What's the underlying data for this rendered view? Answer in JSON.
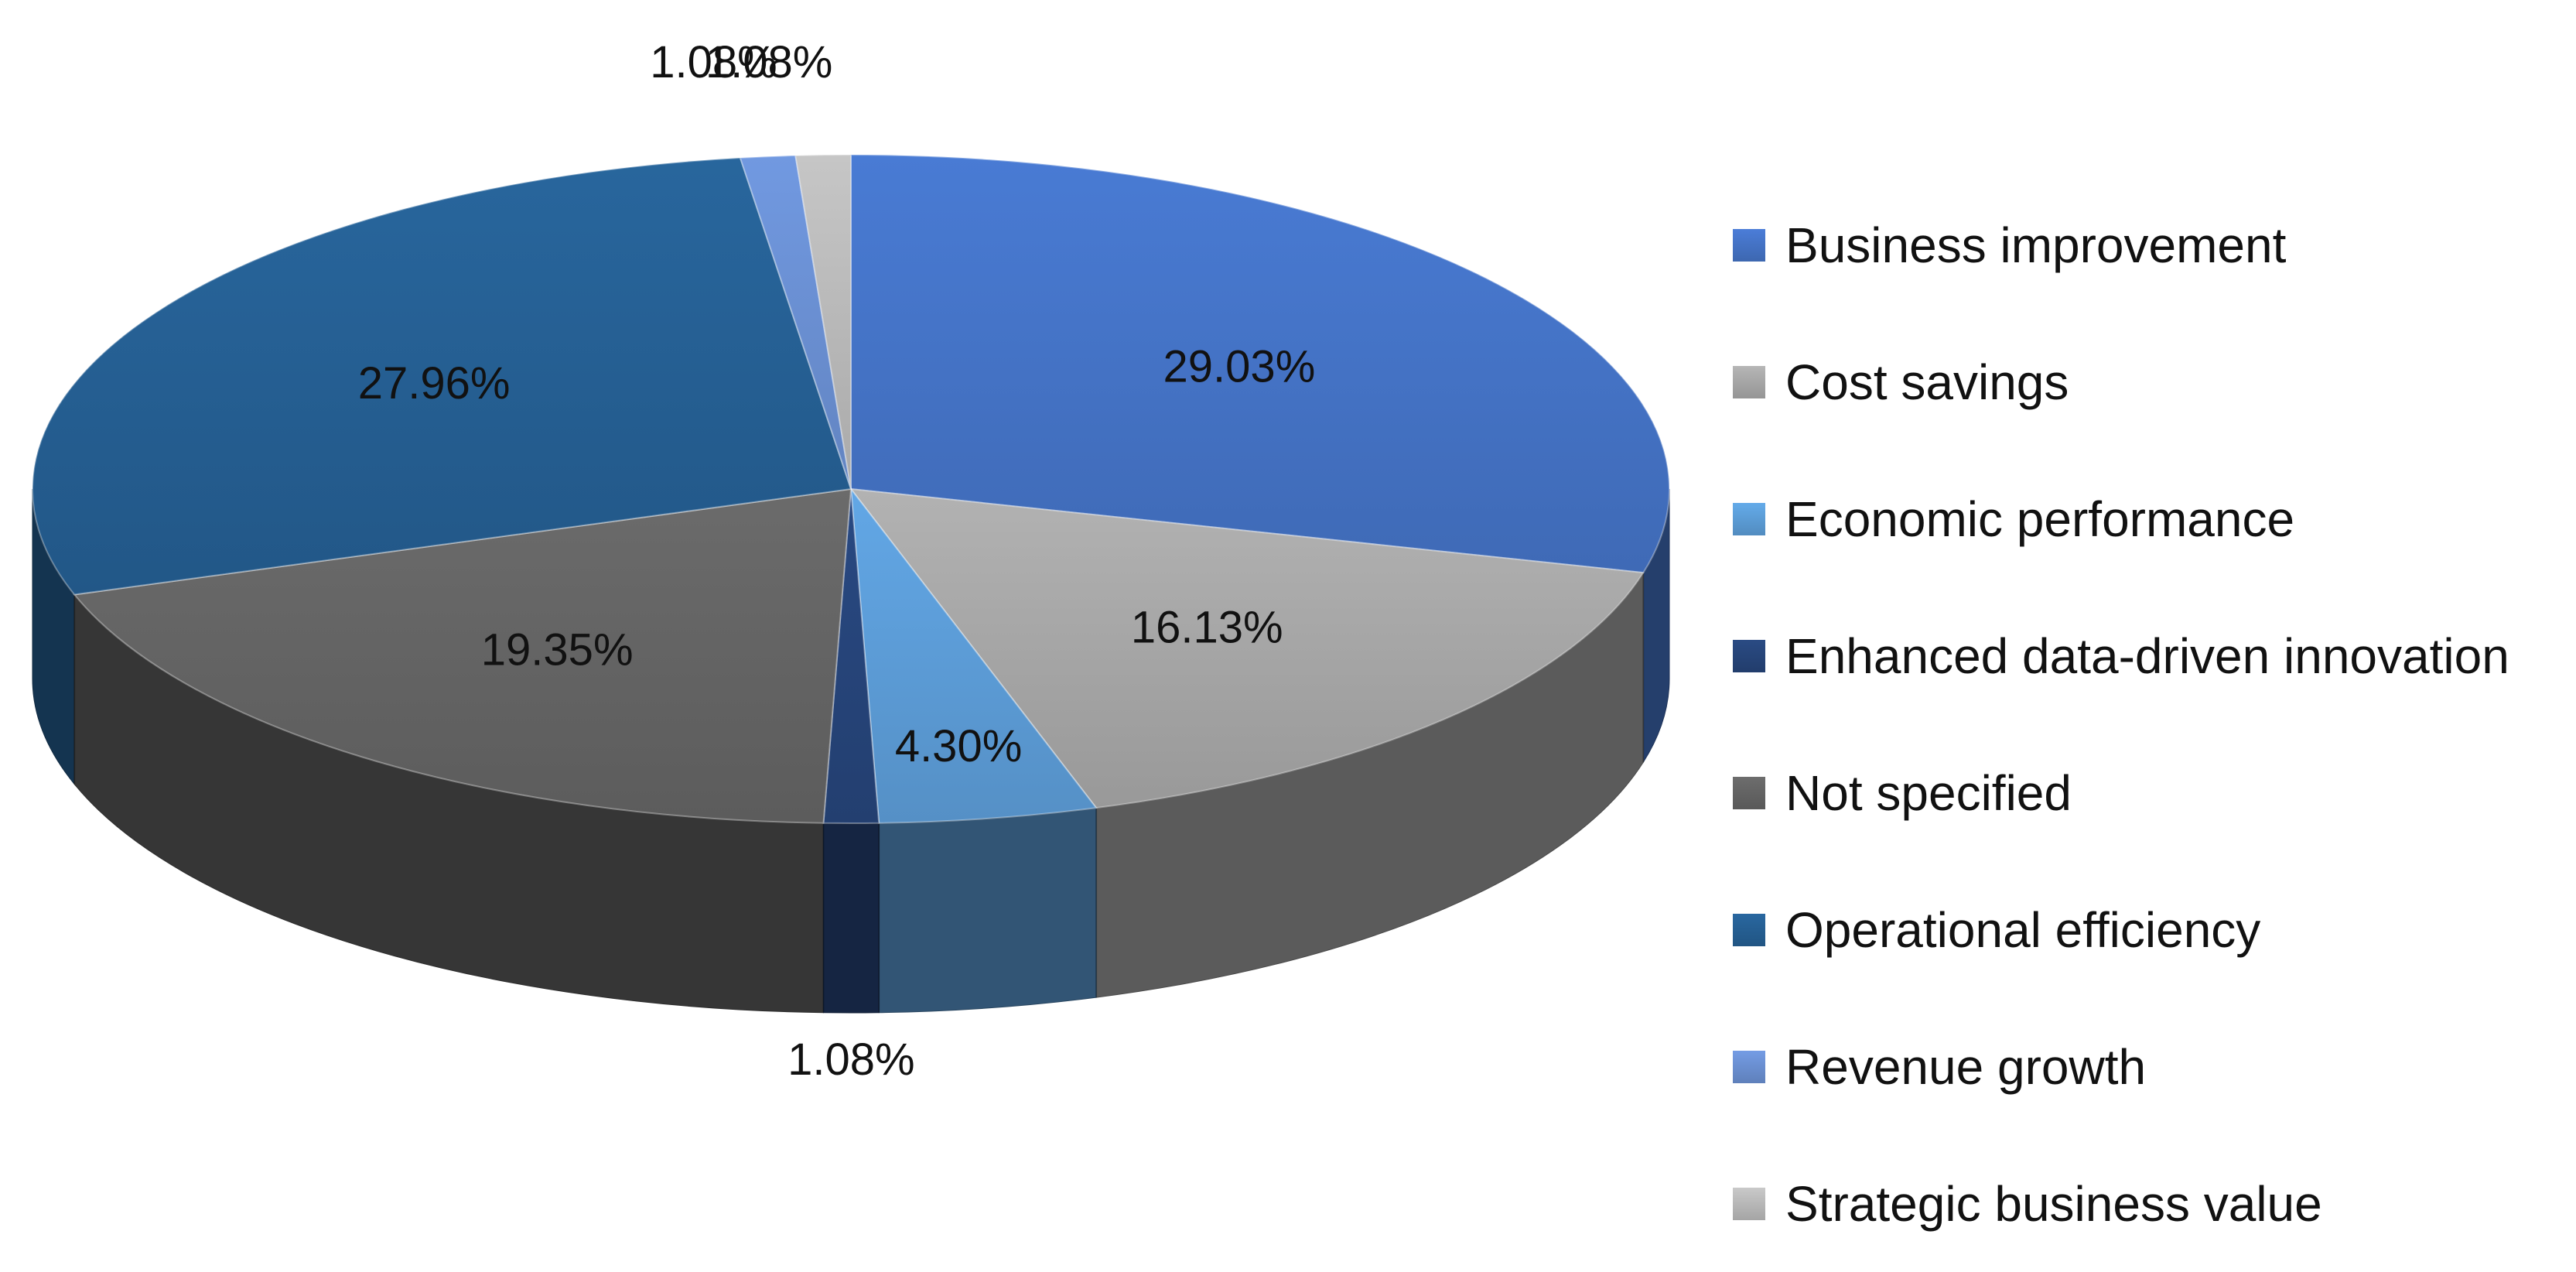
{
  "chart_data": {
    "type": "pie",
    "variant": "3d",
    "title": "",
    "legend_position": "right",
    "categories": [
      "Business improvement",
      "Cost savings",
      "Economic performance",
      "Enhanced data-driven innovation",
      "Not specified",
      "Operational efficiency",
      "Revenue growth",
      "Strategic business value"
    ],
    "values": [
      29.03,
      16.13,
      4.3,
      1.08,
      19.35,
      27.96,
      1.08,
      1.08
    ],
    "labels": [
      "29.03%",
      "16.13%",
      "4.30%",
      "1.08%",
      "19.35%",
      "27.96%",
      "1.08%",
      "1.08%"
    ],
    "colors": [
      "#4472c4",
      "#a5a5a5",
      "#5b9bd5",
      "#264478",
      "#636363",
      "#255e91",
      "#698ed0",
      "#b7b7b7"
    ]
  }
}
